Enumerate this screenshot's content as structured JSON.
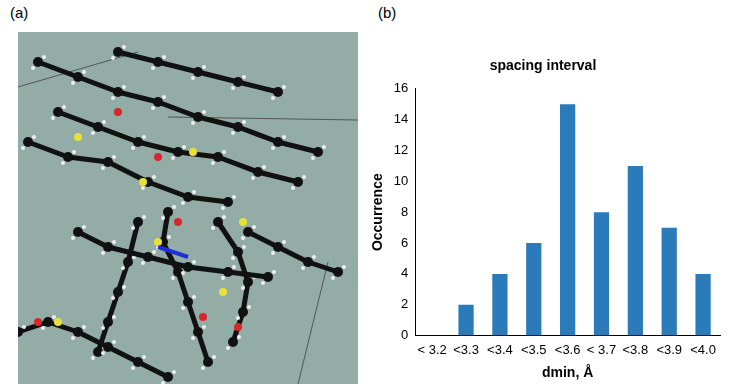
{
  "panel_labels": [
    "(a)",
    "(b)"
  ],
  "chart_data": {
    "type": "bar",
    "title": "spacing interval",
    "x_label": "dmin, Å",
    "y_label": "Occurrence",
    "categories": [
      "< 3.2",
      "<3.3",
      "<3.4",
      "<3.5",
      "<3.6",
      "< 3.7",
      "<3.8",
      "<3.9",
      "<4.0"
    ],
    "values": [
      0,
      2,
      4,
      6,
      15,
      8,
      11,
      7,
      4
    ],
    "color": "#2b7bba",
    "ylim": [
      0,
      16
    ],
    "yticks": [
      0,
      2,
      4,
      6,
      8,
      10,
      12,
      14,
      16
    ],
    "grid": false
  }
}
